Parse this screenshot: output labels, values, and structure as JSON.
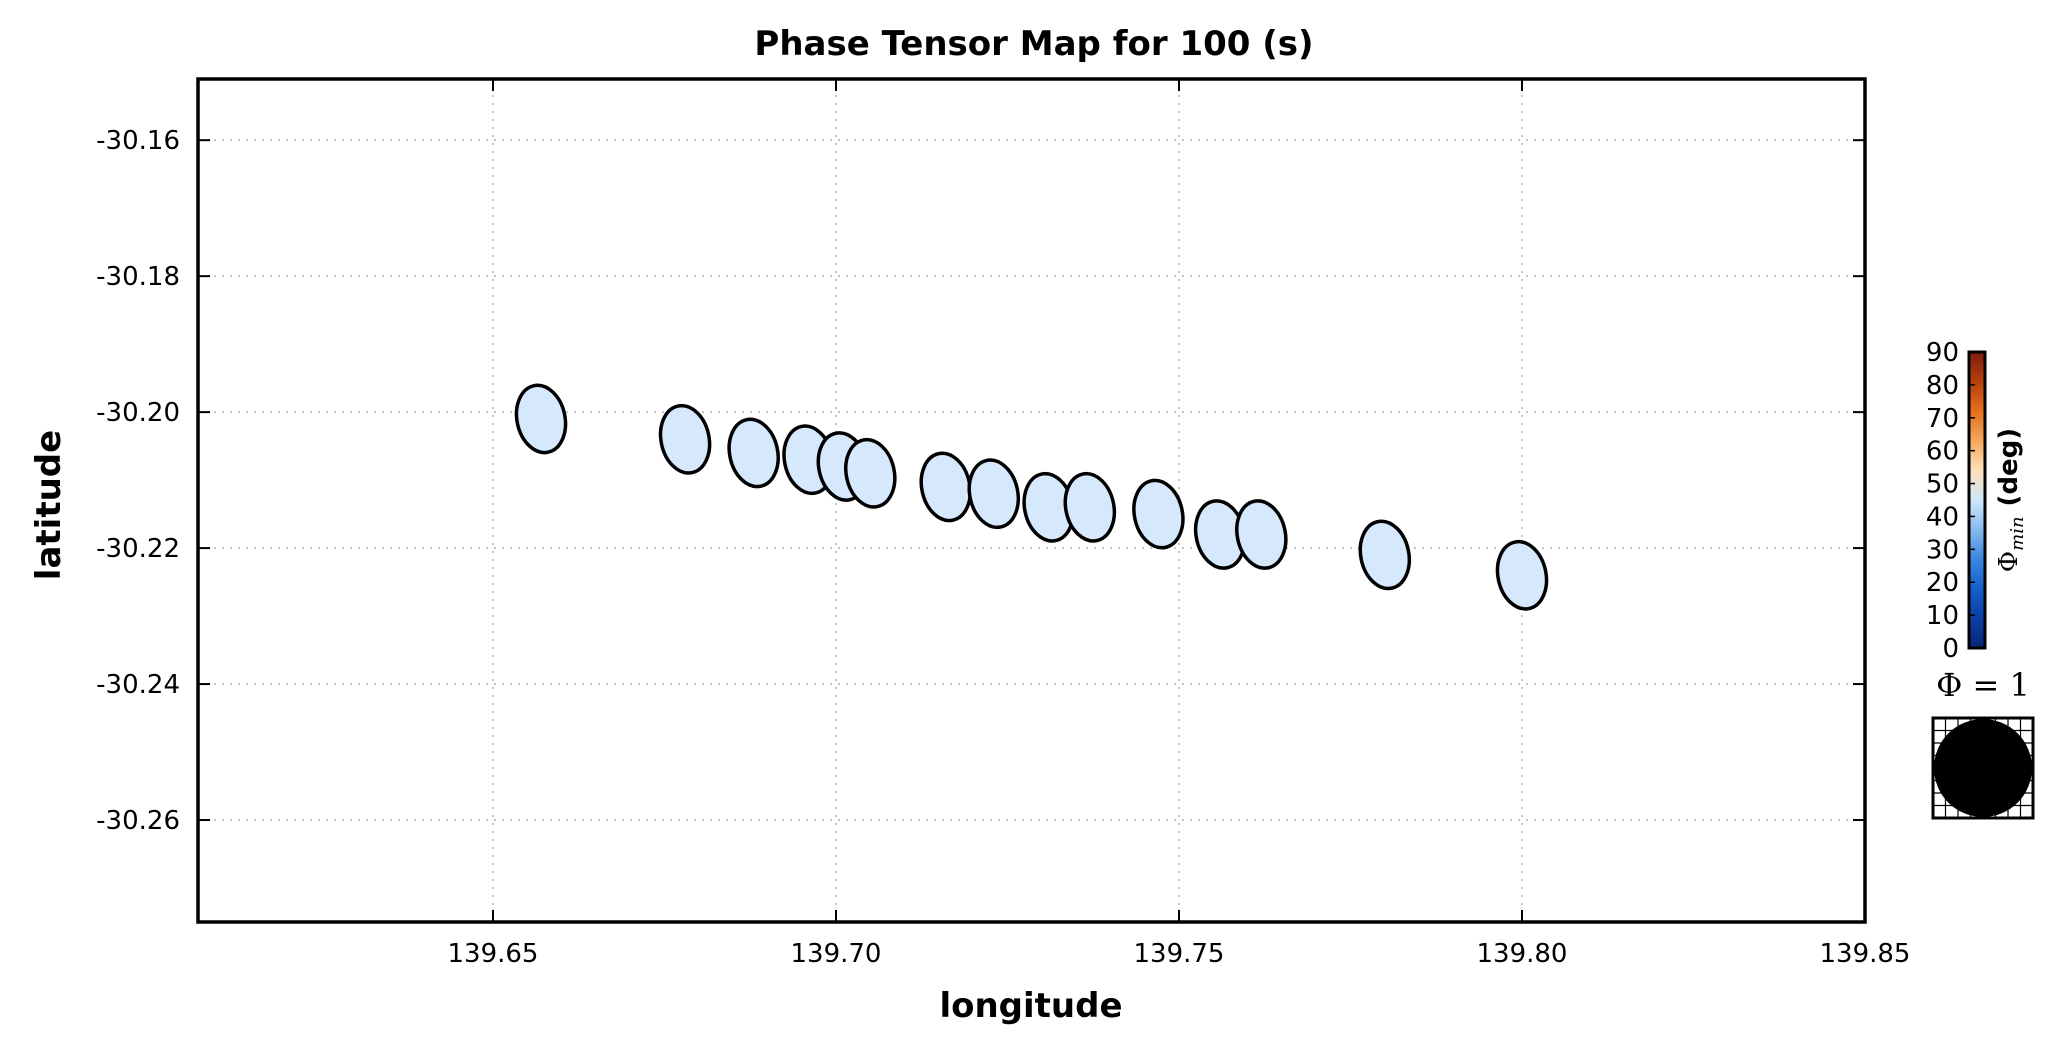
{
  "chart_data": {
    "type": "scatter",
    "title": "Phase Tensor Map for 100 (s)",
    "xlabel": "longitude",
    "ylabel": "latitude",
    "xlim": [
      139.607,
      139.85
    ],
    "ylim": [
      -30.275,
      -30.151
    ],
    "xticks": [
      "139.65",
      "139.70",
      "139.75",
      "139.80",
      "139.85"
    ],
    "xtick_values": [
      139.65,
      139.7,
      139.75,
      139.8,
      139.85
    ],
    "yticks": [
      "-30.16",
      "-30.18",
      "-30.20",
      "-30.22",
      "-30.24",
      "-30.26"
    ],
    "ytick_values": [
      -30.16,
      -30.18,
      -30.2,
      -30.22,
      -30.24,
      -30.26
    ],
    "grid": true,
    "marker": "phase tensor ellipse",
    "fill_color": "#d6e8fb",
    "edge_color": "#000000",
    "points": [
      {
        "lon": 139.657,
        "lat": -30.201
      },
      {
        "lon": 139.678,
        "lat": -30.204
      },
      {
        "lon": 139.688,
        "lat": -30.206
      },
      {
        "lon": 139.696,
        "lat": -30.207
      },
      {
        "lon": 139.701,
        "lat": -30.208
      },
      {
        "lon": 139.705,
        "lat": -30.209
      },
      {
        "lon": 139.716,
        "lat": -30.211
      },
      {
        "lon": 139.723,
        "lat": -30.212
      },
      {
        "lon": 139.731,
        "lat": -30.214
      },
      {
        "lon": 139.737,
        "lat": -30.214
      },
      {
        "lon": 139.747,
        "lat": -30.215
      },
      {
        "lon": 139.756,
        "lat": -30.218
      },
      {
        "lon": 139.762,
        "lat": -30.218
      },
      {
        "lon": 139.78,
        "lat": -30.221
      },
      {
        "lon": 139.8,
        "lat": -30.224
      }
    ],
    "colorbar": {
      "label_symbol": "Φ",
      "label_subscript": "min",
      "label_unit": "(deg)",
      "ticks": [
        "90",
        "80",
        "70",
        "60",
        "50",
        "40",
        "30",
        "20",
        "10",
        "0"
      ],
      "range": [
        0,
        90
      ],
      "colors": [
        "#07267a",
        "#0a3fa4",
        "#1560c9",
        "#3b86e0",
        "#86bbee",
        "#cfe6fb",
        "#fce0b8",
        "#f5a85e",
        "#e2701d",
        "#b5400e",
        "#7d1d08"
      ]
    },
    "reference": {
      "label": "Φ = 1"
    }
  }
}
